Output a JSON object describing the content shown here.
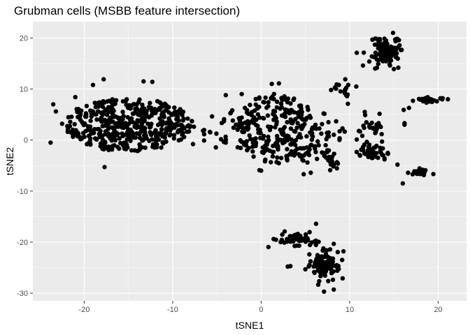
{
  "colors": {
    "panel_background": "#ebebeb",
    "grid_major": "#ffffff",
    "grid_minor": "#f5f5f5",
    "point": "#000000",
    "tick": "#333333"
  },
  "chart_data": {
    "type": "scatter",
    "title": "Grubman cells (MSBB feature intersection)",
    "xlabel": "tSNE1",
    "ylabel": "tSNE2",
    "xlim": [
      -25.8,
      23.2
    ],
    "ylim": [
      -31.5,
      23.2
    ],
    "xticks": [
      -20,
      -10,
      0,
      10,
      20
    ],
    "yticks": [
      -30,
      -20,
      -10,
      0,
      10,
      20
    ],
    "grid": true,
    "legend": "none",
    "clusters": [
      {
        "center": [
          -15,
          3
        ],
        "spread": [
          5.0,
          3.6
        ],
        "count": 460,
        "shape": "uniform"
      },
      {
        "center": [
          -3,
          1.5
        ],
        "spread": [
          2.8,
          3.0
        ],
        "count": 40,
        "shape": "uniform"
      },
      {
        "center": [
          1.8,
          2.2
        ],
        "spread": [
          3.2,
          4.8
        ],
        "count": 220,
        "shape": "uniform"
      },
      {
        "center": [
          5.8,
          0.5
        ],
        "spread": [
          2.6,
          3.6
        ],
        "count": 70,
        "shape": "uniform"
      },
      {
        "center": [
          14.0,
          17.5
        ],
        "spread": [
          1.6,
          2.6
        ],
        "count": 95,
        "shape": "normal"
      },
      {
        "center": [
          9.2,
          10.0
        ],
        "spread": [
          1.0,
          1.6
        ],
        "count": 14,
        "shape": "normal"
      },
      {
        "center": [
          12.6,
          2.5
        ],
        "spread": [
          1.2,
          2.2
        ],
        "count": 30,
        "shape": "normal"
      },
      {
        "center": [
          12.6,
          -2.5
        ],
        "spread": [
          1.8,
          1.3
        ],
        "count": 50,
        "shape": "normal"
      },
      {
        "center": [
          18.0,
          -6.3
        ],
        "spread": [
          1.1,
          0.6
        ],
        "count": 30,
        "shape": "normal"
      },
      {
        "center": [
          19.0,
          7.8
        ],
        "spread": [
          1.4,
          0.6
        ],
        "count": 26,
        "shape": "normal"
      },
      {
        "center": [
          7.2,
          -24.5
        ],
        "spread": [
          1.4,
          2.6
        ],
        "count": 110,
        "shape": "normal"
      },
      {
        "center": [
          4.0,
          -19.5
        ],
        "spread": [
          2.0,
          1.2
        ],
        "count": 50,
        "shape": "normal"
      },
      {
        "center": [
          8.0,
          -4.0
        ],
        "spread": [
          1.0,
          1.2
        ],
        "count": 22,
        "shape": "normal"
      }
    ],
    "points": [
      [
        -23.5,
        7.0
      ],
      [
        -23.2,
        5.6
      ],
      [
        -23.8,
        -0.5
      ],
      [
        -22.5,
        3.2
      ],
      [
        -21.0,
        8.4
      ],
      [
        -19.0,
        10.8
      ],
      [
        -17.8,
        11.9
      ],
      [
        -17.7,
        -5.3
      ],
      [
        -13.3,
        11.5
      ],
      [
        -12.3,
        11.4
      ],
      [
        -4.0,
        8.8
      ],
      [
        -2.2,
        9.0
      ],
      [
        -2.2,
        4.4
      ],
      [
        -5.8,
        1.6
      ],
      [
        -7.6,
        2.6
      ],
      [
        -7.7,
        -0.8
      ],
      [
        -4.0,
        -0.5
      ],
      [
        -0.2,
        -5.9
      ],
      [
        0.0,
        -6.0
      ],
      [
        1.3,
        -3.2
      ],
      [
        1.2,
        11.0
      ],
      [
        2.0,
        11.1
      ],
      [
        4.8,
        -6.7
      ],
      [
        5.6,
        -6.4
      ],
      [
        7.6,
        3.5
      ],
      [
        7.9,
        9.8
      ],
      [
        9.5,
        11.9
      ],
      [
        9.7,
        8.6
      ],
      [
        9.8,
        7.1
      ],
      [
        7.8,
        -5.9
      ],
      [
        6.3,
        -3.7
      ],
      [
        10.8,
        0.1
      ],
      [
        11.7,
        5.5
      ],
      [
        10.8,
        17.1
      ],
      [
        11.5,
        14.6
      ],
      [
        15.4,
        -4.8
      ],
      [
        16.0,
        -8.5
      ],
      [
        16.6,
        -6.4
      ],
      [
        16.1,
        5.9
      ],
      [
        16.2,
        3.3
      ],
      [
        16.2,
        3.0
      ],
      [
        16.7,
        6.3
      ],
      [
        20.5,
        8.2
      ],
      [
        21.1,
        8.0
      ],
      [
        14.9,
        21.0
      ],
      [
        15.0,
        13.9
      ],
      [
        3.0,
        -24.8
      ],
      [
        3.3,
        -24.7
      ],
      [
        1.4,
        -19.4
      ],
      [
        2.2,
        -20.0
      ],
      [
        6.2,
        -16.4
      ],
      [
        7.1,
        -29.7
      ],
      [
        9.3,
        -21.8
      ],
      [
        8.2,
        -29.3
      ],
      [
        9.2,
        -27.1
      ]
    ]
  }
}
